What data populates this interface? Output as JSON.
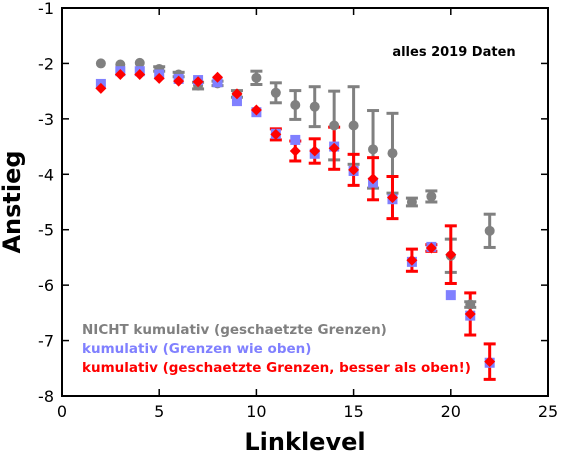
{
  "chart_data": {
    "type": "scatter",
    "title": "",
    "xlabel": "Linklevel",
    "ylabel": "Anstieg",
    "xlim": [
      0,
      25
    ],
    "ylim": [
      -8,
      -1
    ],
    "xticks": [
      0,
      5,
      10,
      15,
      20,
      25
    ],
    "yticks": [
      -8,
      -7,
      -6,
      -5,
      -4,
      -3,
      -2,
      -1
    ],
    "annotation": "alles 2019 Daten",
    "legend_position": "bottom-left",
    "series": [
      {
        "name": "NICHT kumulativ (geschaetzte Grenzen)",
        "color": "#808080",
        "marker": "circle",
        "points": [
          {
            "x": 2,
            "y": -2.0
          },
          {
            "x": 3,
            "y": -2.02
          },
          {
            "x": 4,
            "y": -1.99
          },
          {
            "x": 5,
            "y": -2.1,
            "err": 0.04
          },
          {
            "x": 6,
            "y": -2.2,
            "err": 0.04
          },
          {
            "x": 7,
            "y": -2.4,
            "err": 0.06
          },
          {
            "x": 8,
            "y": -2.36,
            "err": 0.04
          },
          {
            "x": 9,
            "y": -2.55,
            "err": 0.06
          },
          {
            "x": 10,
            "y": -2.26,
            "err": 0.12
          },
          {
            "x": 11,
            "y": -2.53,
            "err": 0.18
          },
          {
            "x": 12,
            "y": -2.75,
            "err": 0.26
          },
          {
            "x": 13,
            "y": -2.78,
            "err": 0.36
          },
          {
            "x": 14,
            "y": -3.12,
            "err": 0.62
          },
          {
            "x": 15,
            "y": -3.12,
            "err": 0.7
          },
          {
            "x": 16,
            "y": -3.55,
            "err": 0.7
          },
          {
            "x": 17,
            "y": -3.62,
            "err": 0.72
          },
          {
            "x": 18,
            "y": -4.5,
            "err": 0.07
          },
          {
            "x": 19,
            "y": -4.4,
            "err": 0.1
          },
          {
            "x": 20,
            "y": -5.47,
            "err": 0.3
          },
          {
            "x": 21,
            "y": -6.35,
            "err": 0.05
          },
          {
            "x": 22,
            "y": -5.02,
            "err": 0.3
          }
        ]
      },
      {
        "name": "kumulativ (Grenzen wie oben)",
        "color": "#8080ff",
        "marker": "square",
        "points": [
          {
            "x": 2,
            "y": -2.37
          },
          {
            "x": 3,
            "y": -2.14
          },
          {
            "x": 4,
            "y": -2.14
          },
          {
            "x": 5,
            "y": -2.2
          },
          {
            "x": 6,
            "y": -2.28
          },
          {
            "x": 7,
            "y": -2.3
          },
          {
            "x": 8,
            "y": -2.34
          },
          {
            "x": 9,
            "y": -2.68
          },
          {
            "x": 10,
            "y": -2.88
          },
          {
            "x": 11,
            "y": -3.27
          },
          {
            "x": 12,
            "y": -3.38
          },
          {
            "x": 13,
            "y": -3.63
          },
          {
            "x": 14,
            "y": -3.5
          },
          {
            "x": 15,
            "y": -3.94
          },
          {
            "x": 16,
            "y": -4.15
          },
          {
            "x": 17,
            "y": -4.45
          },
          {
            "x": 18,
            "y": -5.58
          },
          {
            "x": 19,
            "y": -5.31
          },
          {
            "x": 20,
            "y": -6.18
          },
          {
            "x": 21,
            "y": -6.55
          },
          {
            "x": 22,
            "y": -7.4
          }
        ]
      },
      {
        "name": "kumulativ (geschaetzte Grenzen, besser als oben!)",
        "color": "#ff0000",
        "marker": "diamond",
        "points": [
          {
            "x": 2,
            "y": -2.45
          },
          {
            "x": 3,
            "y": -2.2
          },
          {
            "x": 4,
            "y": -2.2
          },
          {
            "x": 5,
            "y": -2.27
          },
          {
            "x": 6,
            "y": -2.32
          },
          {
            "x": 7,
            "y": -2.33
          },
          {
            "x": 8,
            "y": -2.25
          },
          {
            "x": 9,
            "y": -2.55
          },
          {
            "x": 10,
            "y": -2.84
          },
          {
            "x": 11,
            "y": -3.28,
            "err": 0.1
          },
          {
            "x": 12,
            "y": -3.58,
            "err": 0.18
          },
          {
            "x": 13,
            "y": -3.58,
            "err": 0.22
          },
          {
            "x": 14,
            "y": -3.53,
            "err": 0.38
          },
          {
            "x": 15,
            "y": -3.92,
            "err": 0.28
          },
          {
            "x": 16,
            "y": -4.08,
            "err": 0.38
          },
          {
            "x": 17,
            "y": -4.42,
            "err": 0.38
          },
          {
            "x": 18,
            "y": -5.55,
            "err": 0.2
          },
          {
            "x": 19,
            "y": -5.33,
            "err": 0.06
          },
          {
            "x": 20,
            "y": -5.45,
            "err": 0.52
          },
          {
            "x": 21,
            "y": -6.52,
            "err": 0.38
          },
          {
            "x": 22,
            "y": -7.38,
            "err": 0.32
          }
        ]
      }
    ]
  }
}
